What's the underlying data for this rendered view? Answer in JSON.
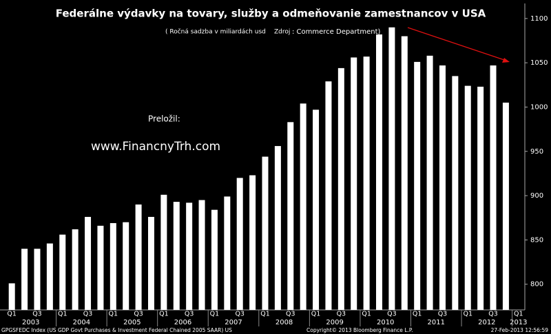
{
  "chart_data": {
    "type": "bar",
    "title": "Federálne výdavky na tovary, služby a odmeňovanie zamestnancov v USA",
    "subtitle_left": "( Ročná sadzba v miliardách usd",
    "subtitle_source_label": "Zdroj",
    "subtitle_source": ": Commerce Department)",
    "annotations": [
      "Preložil:",
      "www.FinancnyTrh.com"
    ],
    "footer": [
      "GPGSFEDC Index (US GDP Govt Purchases & Investment Federal Chained 2005 SAAR) US",
      "Copyright© 2013 Bloomberg Finance L.P.",
      "27-Feb-2013 12:56:59"
    ],
    "categories": [
      "Q1",
      null,
      "Q3",
      null,
      "Q1",
      null,
      "Q3",
      null,
      "Q1",
      null,
      "Q3",
      null,
      "Q1",
      null,
      "Q3",
      null,
      "Q1",
      null,
      "Q3",
      null,
      "Q1",
      null,
      "Q3",
      null,
      "Q1",
      null,
      "Q3",
      null,
      "Q1",
      null,
      "Q3",
      null,
      "Q1",
      null,
      "Q3",
      null,
      "Q1",
      null,
      "Q3",
      null,
      "Q1"
    ],
    "years": [
      "2003",
      "2004",
      "2005",
      "2006",
      "2007",
      "2008",
      "2009",
      "2010",
      "2011",
      "2012",
      "2013"
    ],
    "values": [
      801,
      840,
      840,
      846,
      856,
      862,
      876,
      866,
      869,
      870,
      890,
      876,
      901,
      893,
      892,
      895,
      884,
      899,
      920,
      923,
      944,
      956,
      983,
      1004,
      997,
      1029,
      1044,
      1056,
      1057,
      1082,
      1090,
      1080,
      1051,
      1058,
      1047,
      1035,
      1024,
      1023,
      1047,
      1005,
      null
    ],
    "color": "#ffffff",
    "ylim": [
      771,
      1117
    ],
    "yticks": [
      800,
      850,
      900,
      950,
      1000,
      1050,
      1100
    ],
    "grid": false
  }
}
